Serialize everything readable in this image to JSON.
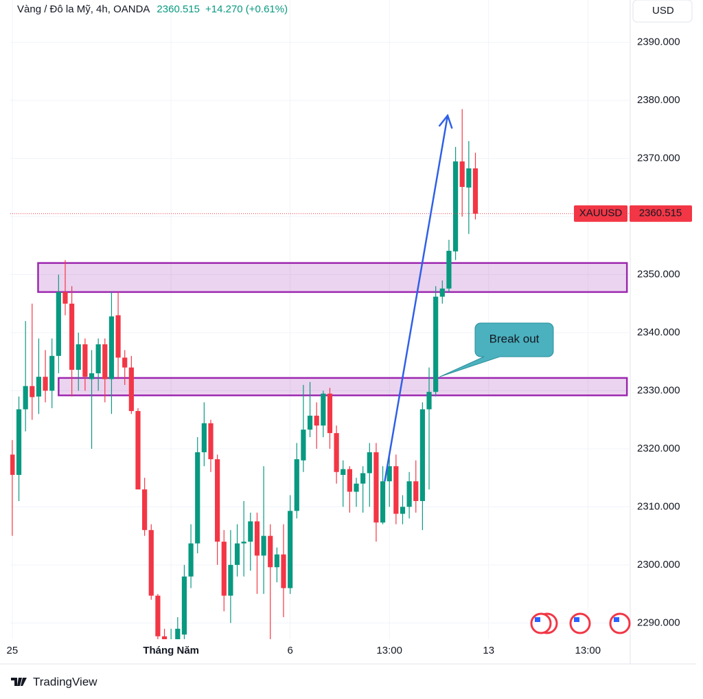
{
  "chart_data": {
    "type": "candlestick",
    "title": "Vàng / Đô la Mỹ, 4h, OANDA",
    "last_price": 2360.515,
    "change_label": "+14.270 (+0.61%)",
    "currency": "USD",
    "symbol": "XAUUSD",
    "brand": "TradingView",
    "up_color": "#089981",
    "down_color": "#f23645",
    "open": [
      2319,
      2315.5,
      2326.8,
      2330.8,
      2329,
      2332.4,
      2330,
      2336,
      2347,
      2345,
      2333.6,
      2338,
      2332,
      2333,
      2338,
      2332,
      2343,
      2335.7,
      2334,
      2326.5,
      2313,
      2306,
      2294.7,
      2287.7,
      2285,
      2287,
      2288,
      2298,
      2303.7,
      2319.4,
      2324.4,
      2318.2,
      2304,
      2294.7,
      2300,
      2303.7,
      2304,
      2307.5,
      2301.6,
      2305,
      2299.6,
      2301.8,
      2296,
      2309.3,
      2318,
      2323.3,
      2325.7,
      2324,
      2329.5,
      2322.7,
      2315.5,
      2316.5,
      2312.6,
      2314,
      2315.8,
      2319.4,
      2307.3,
      2314.4,
      2317,
      2308.8,
      2310,
      2314.4,
      2311,
      2326.8,
      2329.8,
      2346.2,
      2347.6,
      2354,
      2369.5,
      2365,
      2368.3
    ],
    "high": [
      2321.5,
      2329,
      2342,
      2345,
      2339,
      2337,
      2339,
      2350,
      2352.5,
      2348,
      2340,
      2339,
      2337,
      2339,
      2339,
      2347,
      2347,
      2337,
      2336,
      2327,
      2315,
      2307,
      2295,
      2289,
      2289,
      2291,
      2300,
      2307,
      2322,
      2328,
      2325,
      2319,
      2306,
      2306,
      2307,
      2311,
      2309,
      2309,
      2317,
      2307,
      2303,
      2307,
      2312,
      2321,
      2331,
      2331.5,
      2328,
      2330,
      2330.5,
      2324,
      2318,
      2317,
      2315,
      2317,
      2321,
      2321,
      2317,
      2319,
      2319,
      2312,
      2316,
      2318,
      2328,
      2334,
      2348,
      2349,
      2356,
      2372,
      2378.5,
      2373,
      2371
    ],
    "low": [
      2305,
      2311,
      2323,
      2325,
      2326,
      2328,
      2327,
      2333,
      2343,
      2329,
      2330,
      2330,
      2320,
      2330,
      2328,
      2326,
      2332,
      2331,
      2326,
      2313,
      2305,
      2294,
      2287,
      2283,
      2283,
      2285,
      2287,
      2296,
      2302,
      2317,
      2316,
      2300,
      2292,
      2290,
      2298,
      2298,
      2299,
      2295,
      2295,
      2285,
      2297,
      2291,
      2295,
      2308,
      2316,
      2322,
      2320,
      2322,
      2320,
      2314,
      2310,
      2309,
      2310,
      2309,
      2310,
      2304,
      2307,
      2310,
      2307,
      2307,
      2308,
      2309,
      2306,
      2313,
      2329,
      2345,
      2347,
      2352.5,
      2360,
      2357,
      2359.5
    ],
    "close": [
      2315.5,
      2326.8,
      2330.8,
      2328.9,
      2332.4,
      2330,
      2336,
      2347,
      2345,
      2333.6,
      2338,
      2332.4,
      2333,
      2338,
      2332,
      2342.8,
      2335.7,
      2334,
      2326.5,
      2313,
      2306,
      2294.7,
      2287.7,
      2285,
      2287,
      2289,
      2298,
      2303.7,
      2319.4,
      2324.4,
      2318.2,
      2304,
      2294.7,
      2300,
      2303.7,
      2304,
      2307.5,
      2301.6,
      2305,
      2299.6,
      2301.8,
      2296,
      2309.3,
      2318.2,
      2323.3,
      2325.7,
      2324,
      2329.5,
      2322.7,
      2316,
      2316.5,
      2312.6,
      2314,
      2315.8,
      2319.4,
      2307.3,
      2314.4,
      2317,
      2308.8,
      2310,
      2314.4,
      2311,
      2326.8,
      2329.8,
      2346.2,
      2347.6,
      2354.1,
      2369.5,
      2365.1,
      2368.3,
      2360.5
    ],
    "xlim": [
      -0.3,
      93.4
    ],
    "xticks": [
      {
        "value": 0,
        "label": "25"
      },
      {
        "value": 24,
        "label": "Tháng Năm"
      },
      {
        "value": 42,
        "label": "6"
      },
      {
        "value": 57,
        "label": "13:00"
      },
      {
        "value": 72,
        "label": "13"
      },
      {
        "value": 87,
        "label": "13:00"
      }
    ],
    "ylim": [
      2287.2,
      2397.3
    ],
    "yticks": [
      {
        "value": 2290,
        "label": "2290.000"
      },
      {
        "value": 2300,
        "label": "2300.000"
      },
      {
        "value": 2310,
        "label": "2310.000"
      },
      {
        "value": 2320,
        "label": "2320.000"
      },
      {
        "value": 2330,
        "label": "2330.000"
      },
      {
        "value": 2340,
        "label": "2340.000"
      },
      {
        "value": 2350,
        "label": "2350.000"
      },
      {
        "value": 2360,
        "label": "2360.000"
      },
      {
        "value": 2370,
        "label": "2370.000"
      },
      {
        "value": 2380,
        "label": "2380.000"
      },
      {
        "value": 2390,
        "label": "2390.000"
      }
    ],
    "grid": true,
    "zones": [
      {
        "low": 2347,
        "high": 2352,
        "start": 3.9,
        "end": 92.9
      },
      {
        "low": 2329.2,
        "high": 2332.2,
        "start": 7,
        "end": 92.9
      }
    ],
    "arrow": {
      "from": [
        56.3,
        2314.4
      ],
      "to": [
        65.8,
        2377.4
      ]
    },
    "callout": {
      "text": "Break out",
      "anchor": [
        64.6,
        2332.4
      ]
    }
  }
}
